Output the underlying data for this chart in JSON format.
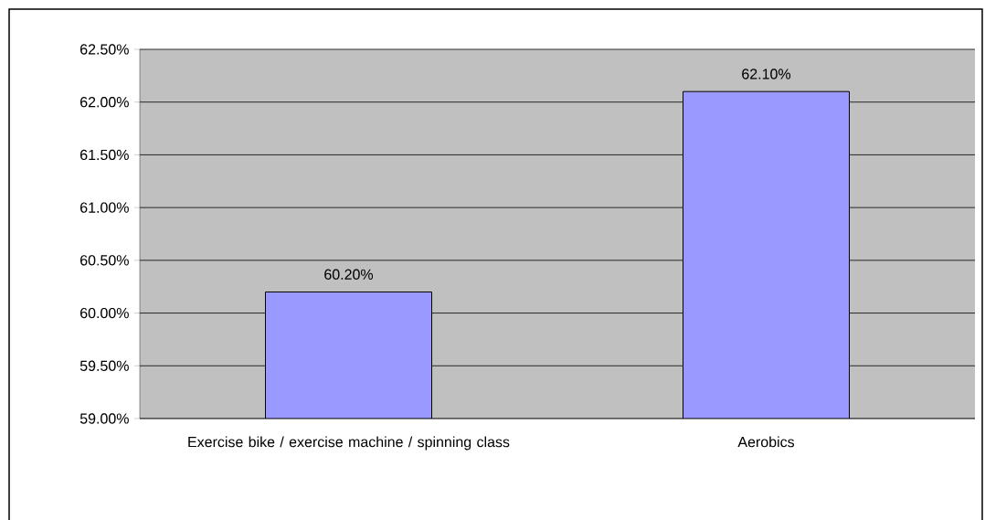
{
  "chart_data": {
    "type": "bar",
    "categories": [
      "Exercise bike / exercise machine / spinning class",
      "Aerobics"
    ],
    "values": [
      60.2,
      62.1
    ],
    "value_labels": [
      "60.20%",
      "62.10%"
    ],
    "color": "#9999ff",
    "ylim": [
      59,
      62.5
    ],
    "yticks": [
      {
        "value": 59,
        "label": "59.00%"
      },
      {
        "value": 59.5,
        "label": "59.50%"
      },
      {
        "value": 60,
        "label": "60.00%"
      },
      {
        "value": 60.5,
        "label": "60.50%"
      },
      {
        "value": 61,
        "label": "61.00%"
      },
      {
        "value": 61.5,
        "label": "61.50%"
      },
      {
        "value": 62,
        "label": "62.00%"
      },
      {
        "value": 62.5,
        "label": "62.50%"
      }
    ],
    "grid": "y"
  }
}
